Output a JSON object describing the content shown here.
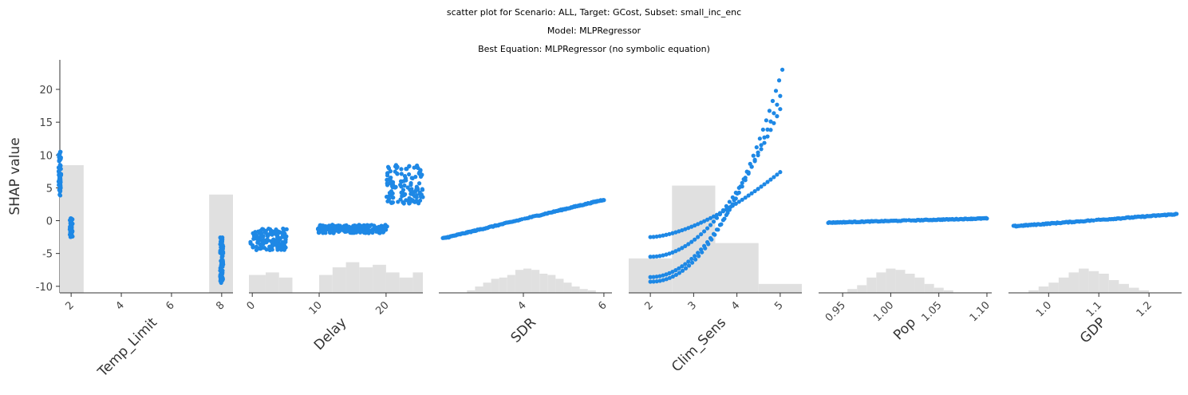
{
  "chart_data": {
    "type": "scatter",
    "title_lines": [
      "scatter plot for Scenario: ALL, Target: GCost, Subset: small_inc_enc",
      "Model: MLPRegressor",
      "Best Equation: MLPRegressor (no symbolic equation)"
    ],
    "ylabel": "SHAP value",
    "ylim": [
      -11,
      24.5
    ],
    "yticks": [
      -10,
      -5,
      0,
      5,
      10,
      15,
      20
    ],
    "point_color": "#1E88E5",
    "hist_color": "#e0e0e0",
    "panels": [
      {
        "xlabel": "Temp_Limit",
        "xlim": [
          1.55,
          8.45
        ],
        "xticks": [
          2,
          4,
          6,
          8
        ],
        "xtick_labels": [
          "2",
          "4",
          "6",
          "8"
        ],
        "hist": [
          {
            "x0": 1.55,
            "x1": 2.5,
            "h": 1.0
          },
          {
            "x0": 7.5,
            "x1": 8.45,
            "h": 0.77
          }
        ],
        "groups": [
          {
            "kind": "vcluster",
            "x": 1.55,
            "ymin": 3.8,
            "ymax": 10.5,
            "n": 60,
            "jitter": 0.05
          },
          {
            "kind": "vcluster",
            "x": 2.0,
            "ymin": -2.5,
            "ymax": 0.4,
            "n": 50,
            "jitter": 0.06
          },
          {
            "kind": "vcluster",
            "x": 8.0,
            "ymin": -9.5,
            "ymax": -2.5,
            "n": 90,
            "jitter": 0.06
          }
        ]
      },
      {
        "xlabel": "Delay",
        "xlim": [
          -0.5,
          25.5
        ],
        "xticks": [
          0,
          10,
          20
        ],
        "xtick_labels": [
          "0",
          "10",
          "20"
        ],
        "hist": [
          {
            "x0": -0.5,
            "x1": 2,
            "h": 0.14
          },
          {
            "x0": 2,
            "x1": 4,
            "h": 0.16
          },
          {
            "x0": 4,
            "x1": 6,
            "h": 0.12
          },
          {
            "x0": 10,
            "x1": 12,
            "h": 0.14
          },
          {
            "x0": 12,
            "x1": 14,
            "h": 0.2
          },
          {
            "x0": 14,
            "x1": 16,
            "h": 0.24
          },
          {
            "x0": 16,
            "x1": 18,
            "h": 0.2
          },
          {
            "x0": 18,
            "x1": 20,
            "h": 0.22
          },
          {
            "x0": 20,
            "x1": 22,
            "h": 0.16
          },
          {
            "x0": 22,
            "x1": 24,
            "h": 0.12
          },
          {
            "x0": 24,
            "x1": 25.5,
            "h": 0.16
          }
        ],
        "groups": [
          {
            "kind": "band",
            "xmin": -0.3,
            "xmax": 5.2,
            "ymin": -4.5,
            "ymax": -1.2,
            "n": 140
          },
          {
            "kind": "band",
            "xmin": 9.8,
            "xmax": 20.2,
            "ymin": -1.9,
            "ymax": -0.6,
            "n": 220
          },
          {
            "kind": "band",
            "xmin": 20.0,
            "xmax": 25.5,
            "ymin": 2.6,
            "ymax": 8.5,
            "n": 130
          }
        ]
      },
      {
        "xlabel": "SDR",
        "xlim": [
          1.9,
          6.2
        ],
        "xticks": [
          4,
          6
        ],
        "xtick_labels": [
          "4",
          "6"
        ],
        "hist": [
          {
            "x0": 2.6,
            "x1": 2.8,
            "h": 0.02
          },
          {
            "x0": 2.8,
            "x1": 3.0,
            "h": 0.05
          },
          {
            "x0": 3.0,
            "x1": 3.2,
            "h": 0.08
          },
          {
            "x0": 3.2,
            "x1": 3.4,
            "h": 0.11
          },
          {
            "x0": 3.4,
            "x1": 3.6,
            "h": 0.12
          },
          {
            "x0": 3.6,
            "x1": 3.8,
            "h": 0.14
          },
          {
            "x0": 3.8,
            "x1": 4.0,
            "h": 0.18
          },
          {
            "x0": 4.0,
            "x1": 4.2,
            "h": 0.19
          },
          {
            "x0": 4.2,
            "x1": 4.4,
            "h": 0.18
          },
          {
            "x0": 4.4,
            "x1": 4.6,
            "h": 0.15
          },
          {
            "x0": 4.6,
            "x1": 4.8,
            "h": 0.14
          },
          {
            "x0": 4.8,
            "x1": 5.0,
            "h": 0.11
          },
          {
            "x0": 5.0,
            "x1": 5.2,
            "h": 0.08
          },
          {
            "x0": 5.2,
            "x1": 5.4,
            "h": 0.05
          },
          {
            "x0": 5.4,
            "x1": 5.6,
            "h": 0.03
          },
          {
            "x0": 5.6,
            "x1": 5.8,
            "h": 0.02
          }
        ],
        "groups": [
          {
            "kind": "line",
            "x0": 2.0,
            "x1": 6.0,
            "y0": -2.7,
            "y1": 3.2,
            "n": 160,
            "spread": 0.15
          }
        ]
      },
      {
        "xlabel": "Clim_Sens",
        "xlim": [
          1.5,
          5.5
        ],
        "xticks": [
          2,
          3,
          4,
          5
        ],
        "xtick_labels": [
          "2",
          "3",
          "4",
          "5"
        ],
        "hist": [
          {
            "x0": 1.5,
            "x1": 2.5,
            "h": 0.27
          },
          {
            "x0": 2.5,
            "x1": 3.5,
            "h": 0.84
          },
          {
            "x0": 3.5,
            "x1": 4.5,
            "h": 0.39
          },
          {
            "x0": 4.5,
            "x1": 5.5,
            "h": 0.07
          }
        ],
        "groups": [
          {
            "kind": "curve",
            "x0": 2.0,
            "x1": 5.0,
            "y0": -2.5,
            "y1": 7.4,
            "power": 1.6,
            "n": 42
          },
          {
            "kind": "curve",
            "x0": 2.0,
            "x1": 5.0,
            "y0": -5.5,
            "y1": 17.0,
            "power": 2.0,
            "n": 42
          },
          {
            "kind": "curve",
            "x0": 2.0,
            "x1": 5.0,
            "y0": -8.6,
            "y1": 19.0,
            "power": 2.0,
            "n": 42
          },
          {
            "kind": "curve",
            "x0": 2.0,
            "x1": 5.05,
            "y0": -9.3,
            "y1": 23.0,
            "power": 2.1,
            "n": 42
          }
        ]
      },
      {
        "xlabel": "Pop",
        "xlim": [
          0.925,
          1.105
        ],
        "xticks": [
          0.95,
          1.0,
          1.05,
          1.1
        ],
        "xtick_labels": [
          "0.95",
          "1.00",
          "1.05",
          "1.10"
        ],
        "hist": [
          {
            "x0": 0.955,
            "x1": 0.965,
            "h": 0.03
          },
          {
            "x0": 0.965,
            "x1": 0.975,
            "h": 0.06
          },
          {
            "x0": 0.975,
            "x1": 0.985,
            "h": 0.12
          },
          {
            "x0": 0.985,
            "x1": 0.995,
            "h": 0.16
          },
          {
            "x0": 0.995,
            "x1": 1.005,
            "h": 0.19
          },
          {
            "x0": 1.005,
            "x1": 1.015,
            "h": 0.18
          },
          {
            "x0": 1.015,
            "x1": 1.025,
            "h": 0.15
          },
          {
            "x0": 1.025,
            "x1": 1.035,
            "h": 0.12
          },
          {
            "x0": 1.035,
            "x1": 1.045,
            "h": 0.07
          },
          {
            "x0": 1.045,
            "x1": 1.055,
            "h": 0.04
          },
          {
            "x0": 1.055,
            "x1": 1.065,
            "h": 0.02
          }
        ],
        "groups": [
          {
            "kind": "line",
            "x0": 0.935,
            "x1": 1.1,
            "y0": -0.3,
            "y1": 0.35,
            "n": 150,
            "spread": 0.12
          }
        ]
      },
      {
        "xlabel": "GDP",
        "xlim": [
          0.92,
          1.265
        ],
        "xticks": [
          1.0,
          1.1,
          1.2
        ],
        "xtick_labels": [
          "1.0",
          "1.1",
          "1.2"
        ],
        "hist": [
          {
            "x0": 0.96,
            "x1": 0.98,
            "h": 0.02
          },
          {
            "x0": 0.98,
            "x1": 1.0,
            "h": 0.05
          },
          {
            "x0": 1.0,
            "x1": 1.02,
            "h": 0.08
          },
          {
            "x0": 1.02,
            "x1": 1.04,
            "h": 0.12
          },
          {
            "x0": 1.04,
            "x1": 1.06,
            "h": 0.16
          },
          {
            "x0": 1.06,
            "x1": 1.08,
            "h": 0.19
          },
          {
            "x0": 1.08,
            "x1": 1.1,
            "h": 0.17
          },
          {
            "x0": 1.1,
            "x1": 1.12,
            "h": 0.15
          },
          {
            "x0": 1.12,
            "x1": 1.14,
            "h": 0.1
          },
          {
            "x0": 1.14,
            "x1": 1.16,
            "h": 0.07
          },
          {
            "x0": 1.16,
            "x1": 1.18,
            "h": 0.04
          },
          {
            "x0": 1.18,
            "x1": 1.2,
            "h": 0.02
          }
        ],
        "groups": [
          {
            "kind": "line",
            "x0": 0.93,
            "x1": 1.255,
            "y0": -0.85,
            "y1": 1.0,
            "n": 150,
            "spread": 0.15
          }
        ]
      }
    ]
  }
}
